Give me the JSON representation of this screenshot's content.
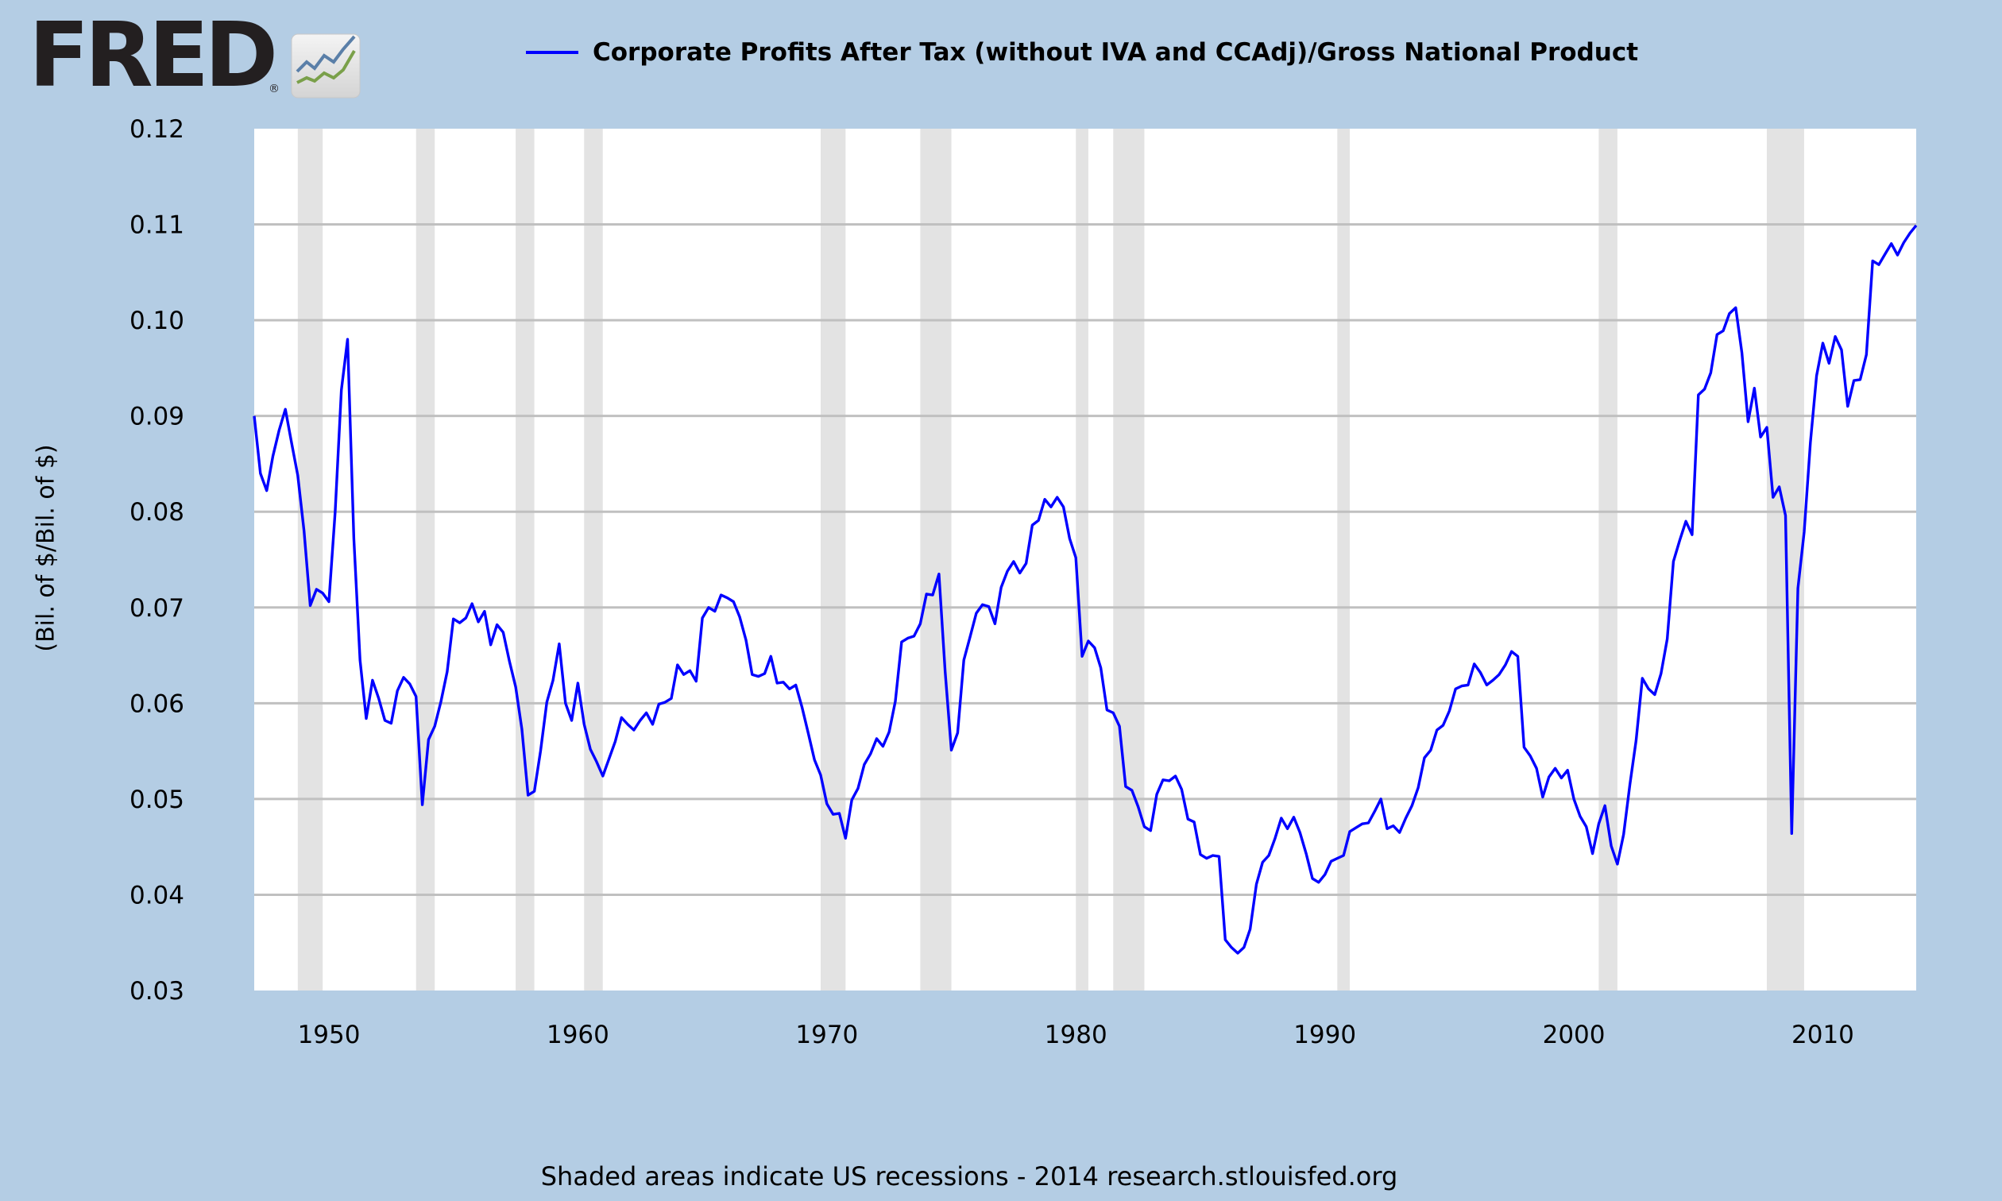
{
  "logo": {
    "text": "FRED",
    "reg": "®",
    "icon": "fred-chart-icon"
  },
  "legend": {
    "label": "Corporate Profits After Tax (without IVA and CCAdj)/Gross National Product",
    "color": "#0000ff"
  },
  "footer": {
    "text": "Shaded areas indicate US recessions - 2014 research.stlouisfed.org"
  },
  "colors": {
    "background": "#b4cde4",
    "plot": "#ffffff",
    "grid": "#c0c0c0",
    "recession": "#e3e3e3",
    "line": "#0000ff"
  },
  "chart_data": {
    "type": "line",
    "title": "",
    "xlabel": "",
    "ylabel": "(Bil. of $/Bil. of $)",
    "xlim": [
      1947.0,
      2013.75
    ],
    "ylim": [
      0.03,
      0.12
    ],
    "yticks": [
      "0.12",
      "0.11",
      "0.10",
      "0.09",
      "0.08",
      "0.07",
      "0.06",
      "0.05",
      "0.04",
      "0.03"
    ],
    "ytick_values": [
      0.12,
      0.11,
      0.1,
      0.09,
      0.08,
      0.07,
      0.06,
      0.05,
      0.04,
      0.03
    ],
    "xticks": [
      "1950",
      "1960",
      "1970",
      "1980",
      "1990",
      "2000",
      "2010"
    ],
    "xtick_values": [
      1950,
      1960,
      1970,
      1980,
      1990,
      2000,
      2010
    ],
    "grid": true,
    "legend": "top",
    "recessions": [
      [
        1948.75,
        1949.75
      ],
      [
        1953.5,
        1954.25
      ],
      [
        1957.5,
        1958.25
      ],
      [
        1960.25,
        1961.0
      ],
      [
        1969.75,
        1970.75
      ],
      [
        1973.75,
        1975.0
      ],
      [
        1980.0,
        1980.5
      ],
      [
        1981.5,
        1982.75
      ],
      [
        1990.5,
        1991.0
      ],
      [
        2001.0,
        2001.75
      ],
      [
        2007.75,
        2009.25
      ]
    ],
    "series": [
      {
        "name": "Corporate Profits After Tax (without IVA and CCAdj)/Gross National Product",
        "x": [
          1947.0,
          1947.25,
          1947.5,
          1947.75,
          1948.0,
          1948.25,
          1948.5,
          1948.75,
          1949.0,
          1949.25,
          1949.5,
          1949.75,
          1950.0,
          1950.25,
          1950.5,
          1950.75,
          1951.0,
          1951.25,
          1951.5,
          1951.75,
          1952.0,
          1952.25,
          1952.5,
          1952.75,
          1953.0,
          1953.25,
          1953.5,
          1953.75,
          1954.0,
          1954.25,
          1954.5,
          1954.75,
          1955.0,
          1955.25,
          1955.5,
          1955.75,
          1956.0,
          1956.25,
          1956.5,
          1956.75,
          1957.0,
          1957.25,
          1957.5,
          1957.75,
          1958.0,
          1958.25,
          1958.5,
          1958.75,
          1959.0,
          1959.25,
          1959.5,
          1959.75,
          1960.0,
          1960.25,
          1960.5,
          1960.75,
          1961.0,
          1961.25,
          1961.5,
          1961.75,
          1962.0,
          1962.25,
          1962.5,
          1962.75,
          1963.0,
          1963.25,
          1963.5,
          1963.75,
          1964.0,
          1964.25,
          1964.5,
          1964.75,
          1965.0,
          1965.25,
          1965.5,
          1965.75,
          1966.0,
          1966.25,
          1966.5,
          1966.75,
          1967.0,
          1967.25,
          1967.5,
          1967.75,
          1968.0,
          1968.25,
          1968.5,
          1968.75,
          1969.0,
          1969.25,
          1969.5,
          1969.75,
          1970.0,
          1970.25,
          1970.5,
          1970.75,
          1971.0,
          1971.25,
          1971.5,
          1971.75,
          1972.0,
          1972.25,
          1972.5,
          1972.75,
          1973.0,
          1973.25,
          1973.5,
          1973.75,
          1974.0,
          1974.25,
          1974.5,
          1974.75,
          1975.0,
          1975.25,
          1975.5,
          1975.75,
          1976.0,
          1976.25,
          1976.5,
          1976.75,
          1977.0,
          1977.25,
          1977.5,
          1977.75,
          1978.0,
          1978.25,
          1978.5,
          1978.75,
          1979.0,
          1979.25,
          1979.5,
          1979.75,
          1980.0,
          1980.25,
          1980.5,
          1980.75,
          1981.0,
          1981.25,
          1981.5,
          1981.75,
          1982.0,
          1982.25,
          1982.5,
          1982.75,
          1983.0,
          1983.25,
          1983.5,
          1983.75,
          1984.0,
          1984.25,
          1984.5,
          1984.75,
          1985.0,
          1985.25,
          1985.5,
          1985.75,
          1986.0,
          1986.25,
          1986.5,
          1986.75,
          1987.0,
          1987.25,
          1987.5,
          1987.75,
          1988.0,
          1988.25,
          1988.5,
          1988.75,
          1989.0,
          1989.25,
          1989.5,
          1989.75,
          1990.0,
          1990.25,
          1990.5,
          1990.75,
          1991.0,
          1991.25,
          1991.5,
          1991.75,
          1992.0,
          1992.25,
          1992.5,
          1992.75,
          1993.0,
          1993.25,
          1993.5,
          1993.75,
          1994.0,
          1994.25,
          1994.5,
          1994.75,
          1995.0,
          1995.25,
          1995.5,
          1995.75,
          1996.0,
          1996.25,
          1996.5,
          1996.75,
          1997.0,
          1997.25,
          1997.5,
          1997.75,
          1998.0,
          1998.25,
          1998.5,
          1998.75,
          1999.0,
          1999.25,
          1999.5,
          1999.75,
          2000.0,
          2000.25,
          2000.5,
          2000.75,
          2001.0,
          2001.25,
          2001.5,
          2001.75,
          2002.0,
          2002.25,
          2002.5,
          2002.75,
          2003.0,
          2003.25,
          2003.5,
          2003.75,
          2004.0,
          2004.25,
          2004.5,
          2004.75,
          2005.0,
          2005.25,
          2005.5,
          2005.75,
          2006.0,
          2006.25,
          2006.5,
          2006.75,
          2007.0,
          2007.25,
          2007.5,
          2007.75,
          2008.0,
          2008.25,
          2008.5,
          2008.75,
          2009.0,
          2009.25,
          2009.5,
          2009.75,
          2010.0,
          2010.25,
          2010.5,
          2010.75,
          2011.0,
          2011.25,
          2011.5,
          2011.75,
          2012.0,
          2012.25,
          2012.5,
          2012.75,
          2013.0,
          2013.25,
          2013.5,
          2013.75
        ],
        "values": [
          0.09,
          0.084,
          0.0822,
          0.0858,
          0.0885,
          0.0907,
          0.0872,
          0.0838,
          0.078,
          0.0702,
          0.0719,
          0.0715,
          0.0706,
          0.08,
          0.0927,
          0.098,
          0.0772,
          0.0645,
          0.0584,
          0.0624,
          0.0605,
          0.0582,
          0.0579,
          0.0613,
          0.0627,
          0.062,
          0.0607,
          0.0494,
          0.0562,
          0.0576,
          0.0602,
          0.0633,
          0.0688,
          0.0684,
          0.0689,
          0.0704,
          0.0685,
          0.0696,
          0.0661,
          0.0682,
          0.0674,
          0.0644,
          0.0617,
          0.0573,
          0.0504,
          0.0508,
          0.055,
          0.0601,
          0.0624,
          0.0662,
          0.06,
          0.0582,
          0.0621,
          0.0578,
          0.0552,
          0.0539,
          0.0524,
          0.0542,
          0.056,
          0.0585,
          0.0578,
          0.0572,
          0.0582,
          0.059,
          0.0578,
          0.0599,
          0.0601,
          0.0605,
          0.064,
          0.063,
          0.0634,
          0.0623,
          0.0689,
          0.07,
          0.0696,
          0.0713,
          0.071,
          0.0706,
          0.069,
          0.0666,
          0.063,
          0.0628,
          0.0631,
          0.0649,
          0.0621,
          0.0622,
          0.0615,
          0.0619,
          0.0596,
          0.0569,
          0.0541,
          0.0525,
          0.0495,
          0.0484,
          0.0485,
          0.0459,
          0.0499,
          0.0511,
          0.0536,
          0.0547,
          0.0563,
          0.0555,
          0.057,
          0.0602,
          0.0664,
          0.0668,
          0.067,
          0.0683,
          0.0714,
          0.0713,
          0.0735,
          0.0633,
          0.0551,
          0.0569,
          0.0645,
          0.0669,
          0.0694,
          0.0703,
          0.0701,
          0.0683,
          0.0721,
          0.0738,
          0.0748,
          0.0736,
          0.0746,
          0.0786,
          0.0791,
          0.0813,
          0.0805,
          0.0815,
          0.0805,
          0.0772,
          0.0752,
          0.0649,
          0.0665,
          0.0658,
          0.0637,
          0.0593,
          0.059,
          0.0576,
          0.0513,
          0.0509,
          0.0492,
          0.0471,
          0.0467,
          0.0505,
          0.052,
          0.0519,
          0.0524,
          0.051,
          0.0479,
          0.0476,
          0.0442,
          0.0438,
          0.0441,
          0.044,
          0.0353,
          0.0345,
          0.0339,
          0.0345,
          0.0364,
          0.0411,
          0.0434,
          0.0441,
          0.0459,
          0.048,
          0.0469,
          0.0481,
          0.0465,
          0.0443,
          0.0417,
          0.0413,
          0.0421,
          0.0435,
          0.0438,
          0.0441,
          0.0466,
          0.047,
          0.0474,
          0.0475,
          0.0487,
          0.05,
          0.0469,
          0.0472,
          0.0465,
          0.048,
          0.0493,
          0.0512,
          0.0543,
          0.0551,
          0.0572,
          0.0577,
          0.0592,
          0.0615,
          0.0618,
          0.0619,
          0.0641,
          0.0632,
          0.0619,
          0.0624,
          0.063,
          0.064,
          0.0654,
          0.0649,
          0.0554,
          0.0545,
          0.0532,
          0.0502,
          0.0523,
          0.0532,
          0.0522,
          0.053,
          0.05,
          0.0482,
          0.0471,
          0.0443,
          0.0474,
          0.0493,
          0.0451,
          0.0432,
          0.0463,
          0.0515,
          0.0561,
          0.0626,
          0.0615,
          0.0609,
          0.0631,
          0.0667,
          0.0748,
          0.077,
          0.079,
          0.0776,
          0.0922,
          0.0928,
          0.0945,
          0.0985,
          0.0989,
          0.1007,
          0.1013,
          0.0966,
          0.0894,
          0.0929,
          0.0878,
          0.0888,
          0.0815,
          0.0826,
          0.0796,
          0.0464,
          0.072,
          0.0779,
          0.0872,
          0.0942,
          0.0976,
          0.0955,
          0.0983,
          0.0969,
          0.091,
          0.0937,
          0.0938,
          0.0964,
          0.1062,
          0.1058,
          0.1069,
          0.108,
          0.1068,
          0.1081,
          0.1091,
          0.1099
        ]
      }
    ]
  }
}
